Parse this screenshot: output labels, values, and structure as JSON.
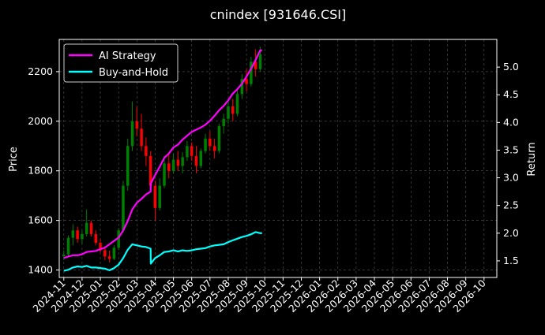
{
  "chart_data": {
    "type": "line",
    "title": "cnindex [931646.CSI]",
    "ylabel_left": "Price",
    "ylabel_right": "Return",
    "left_ylim": [
      1370,
      2330
    ],
    "right_ylim": [
      1.2,
      5.5
    ],
    "left_ticks": [
      1400,
      1600,
      1800,
      2000,
      2200
    ],
    "right_ticks": [
      1.5,
      2.0,
      2.5,
      3.0,
      3.5,
      4.0,
      4.5,
      5.0
    ],
    "x_ticks": [
      "2024-11",
      "2024-12",
      "2025-01",
      "2025-02",
      "2025-03",
      "2025-04",
      "2025-05",
      "2025-06",
      "2025-07",
      "2025-08",
      "2025-09",
      "2025-10",
      "2025-11",
      "2025-12",
      "2026-01",
      "2026-02",
      "2026-03",
      "2026-04",
      "2026-05",
      "2026-06",
      "2026-07",
      "2026-08",
      "2026-09",
      "2026-10"
    ],
    "x_range_months": [
      -0.25,
      23.7
    ],
    "grid": true,
    "legend_position": "top-left",
    "background": "#000000",
    "candle_up_color": "#008000",
    "candle_down_color": "#ff0000",
    "price_ohlc": [
      {
        "m": 0.0,
        "o": 1455,
        "h": 1478,
        "l": 1440,
        "c": 1462
      },
      {
        "m": 0.25,
        "o": 1462,
        "h": 1540,
        "l": 1450,
        "c": 1530
      },
      {
        "m": 0.5,
        "o": 1530,
        "h": 1585,
        "l": 1500,
        "c": 1560
      },
      {
        "m": 0.75,
        "o": 1560,
        "h": 1575,
        "l": 1510,
        "c": 1525
      },
      {
        "m": 1.0,
        "o": 1525,
        "h": 1560,
        "l": 1505,
        "c": 1545
      },
      {
        "m": 1.25,
        "o": 1545,
        "h": 1645,
        "l": 1535,
        "c": 1590
      },
      {
        "m": 1.5,
        "o": 1590,
        "h": 1600,
        "l": 1535,
        "c": 1545
      },
      {
        "m": 1.75,
        "o": 1545,
        "h": 1560,
        "l": 1500,
        "c": 1510
      },
      {
        "m": 2.0,
        "o": 1510,
        "h": 1525,
        "l": 1470,
        "c": 1480
      },
      {
        "m": 2.25,
        "o": 1480,
        "h": 1495,
        "l": 1440,
        "c": 1455
      },
      {
        "m": 2.5,
        "o": 1455,
        "h": 1478,
        "l": 1430,
        "c": 1445
      },
      {
        "m": 2.75,
        "o": 1445,
        "h": 1500,
        "l": 1440,
        "c": 1490
      },
      {
        "m": 3.0,
        "o": 1490,
        "h": 1570,
        "l": 1480,
        "c": 1560
      },
      {
        "m": 3.25,
        "o": 1560,
        "h": 1760,
        "l": 1550,
        "c": 1740
      },
      {
        "m": 3.5,
        "o": 1740,
        "h": 1930,
        "l": 1720,
        "c": 1900
      },
      {
        "m": 3.75,
        "o": 1900,
        "h": 2080,
        "l": 1880,
        "c": 2000
      },
      {
        "m": 4.0,
        "o": 2000,
        "h": 2060,
        "l": 1940,
        "c": 1970
      },
      {
        "m": 4.25,
        "o": 1970,
        "h": 2030,
        "l": 1880,
        "c": 1900
      },
      {
        "m": 4.5,
        "o": 1900,
        "h": 1935,
        "l": 1820,
        "c": 1860
      },
      {
        "m": 4.75,
        "o": 1860,
        "h": 1880,
        "l": 1720,
        "c": 1740
      },
      {
        "m": 5.0,
        "o": 1740,
        "h": 1760,
        "l": 1600,
        "c": 1650
      },
      {
        "m": 5.25,
        "o": 1650,
        "h": 1770,
        "l": 1640,
        "c": 1740
      },
      {
        "m": 5.5,
        "o": 1740,
        "h": 1860,
        "l": 1730,
        "c": 1830
      },
      {
        "m": 5.75,
        "o": 1830,
        "h": 1870,
        "l": 1770,
        "c": 1800
      },
      {
        "m": 6.0,
        "o": 1800,
        "h": 1870,
        "l": 1790,
        "c": 1845
      },
      {
        "m": 6.25,
        "o": 1845,
        "h": 1880,
        "l": 1800,
        "c": 1820
      },
      {
        "m": 6.5,
        "o": 1820,
        "h": 1875,
        "l": 1790,
        "c": 1855
      },
      {
        "m": 6.75,
        "o": 1855,
        "h": 1920,
        "l": 1840,
        "c": 1900
      },
      {
        "m": 7.0,
        "o": 1900,
        "h": 1915,
        "l": 1840,
        "c": 1860
      },
      {
        "m": 7.25,
        "o": 1860,
        "h": 1900,
        "l": 1790,
        "c": 1820
      },
      {
        "m": 7.5,
        "o": 1820,
        "h": 1890,
        "l": 1810,
        "c": 1880
      },
      {
        "m": 7.75,
        "o": 1880,
        "h": 1950,
        "l": 1870,
        "c": 1930
      },
      {
        "m": 8.0,
        "o": 1930,
        "h": 1960,
        "l": 1880,
        "c": 1900
      },
      {
        "m": 8.25,
        "o": 1900,
        "h": 1930,
        "l": 1850,
        "c": 1880
      },
      {
        "m": 8.5,
        "o": 1880,
        "h": 1990,
        "l": 1870,
        "c": 1980
      },
      {
        "m": 8.75,
        "o": 1980,
        "h": 2030,
        "l": 1950,
        "c": 2010
      },
      {
        "m": 9.0,
        "o": 2010,
        "h": 2080,
        "l": 1990,
        "c": 2060
      },
      {
        "m": 9.25,
        "o": 2060,
        "h": 2090,
        "l": 2000,
        "c": 2030
      },
      {
        "m": 9.5,
        "o": 2030,
        "h": 2130,
        "l": 2020,
        "c": 2110
      },
      {
        "m": 9.75,
        "o": 2110,
        "h": 2190,
        "l": 2090,
        "c": 2170
      },
      {
        "m": 10.0,
        "o": 2170,
        "h": 2210,
        "l": 2120,
        "c": 2150
      },
      {
        "m": 10.25,
        "o": 2150,
        "h": 2260,
        "l": 2140,
        "c": 2240
      },
      {
        "m": 10.5,
        "o": 2240,
        "h": 2290,
        "l": 2180,
        "c": 2210
      },
      {
        "m": 10.75,
        "o": 2210,
        "h": 2300,
        "l": 2200,
        "c": 2270
      }
    ],
    "series": [
      {
        "name": "AI Strategy",
        "color": "#ff00ff",
        "x": [
          0.0,
          0.25,
          0.5,
          0.75,
          1.0,
          1.25,
          1.5,
          1.75,
          2.0,
          2.25,
          2.5,
          2.75,
          3.0,
          3.25,
          3.5,
          3.75,
          4.0,
          4.25,
          4.5,
          4.75,
          4.76,
          5.0,
          5.25,
          5.5,
          5.75,
          6.0,
          6.25,
          6.5,
          6.75,
          7.0,
          7.25,
          7.5,
          7.75,
          8.0,
          8.25,
          8.5,
          8.75,
          9.0,
          9.25,
          9.5,
          9.75,
          10.0,
          10.25,
          10.5,
          10.75,
          10.85
        ],
        "values": [
          1.55,
          1.58,
          1.6,
          1.6,
          1.62,
          1.66,
          1.67,
          1.68,
          1.71,
          1.74,
          1.8,
          1.86,
          1.92,
          2.05,
          2.22,
          2.43,
          2.55,
          2.62,
          2.7,
          2.75,
          2.9,
          3.05,
          3.2,
          3.36,
          3.44,
          3.55,
          3.6,
          3.69,
          3.76,
          3.83,
          3.87,
          3.91,
          3.96,
          4.03,
          4.12,
          4.22,
          4.3,
          4.4,
          4.52,
          4.6,
          4.7,
          4.83,
          4.97,
          5.13,
          5.3,
          5.3
        ]
      },
      {
        "name": "Buy-and-Hold",
        "color": "#00ffff",
        "x": [
          0.0,
          0.25,
          0.5,
          0.75,
          1.0,
          1.25,
          1.5,
          1.75,
          2.0,
          2.25,
          2.5,
          2.75,
          3.0,
          3.25,
          3.5,
          3.75,
          4.0,
          4.25,
          4.5,
          4.75,
          4.76,
          5.0,
          5.25,
          5.5,
          5.75,
          6.0,
          6.25,
          6.5,
          6.75,
          7.0,
          7.25,
          7.5,
          7.75,
          8.0,
          8.25,
          8.5,
          8.75,
          9.0,
          9.25,
          9.5,
          9.75,
          10.0,
          10.25,
          10.5,
          10.75,
          10.85
        ],
        "values": [
          1.32,
          1.34,
          1.38,
          1.4,
          1.39,
          1.41,
          1.38,
          1.38,
          1.37,
          1.36,
          1.33,
          1.37,
          1.43,
          1.55,
          1.7,
          1.8,
          1.78,
          1.76,
          1.75,
          1.72,
          1.45,
          1.55,
          1.6,
          1.66,
          1.67,
          1.69,
          1.67,
          1.69,
          1.68,
          1.69,
          1.71,
          1.72,
          1.73,
          1.76,
          1.78,
          1.79,
          1.8,
          1.84,
          1.87,
          1.9,
          1.93,
          1.95,
          1.98,
          2.02,
          2.0,
          2.0
        ]
      }
    ]
  }
}
